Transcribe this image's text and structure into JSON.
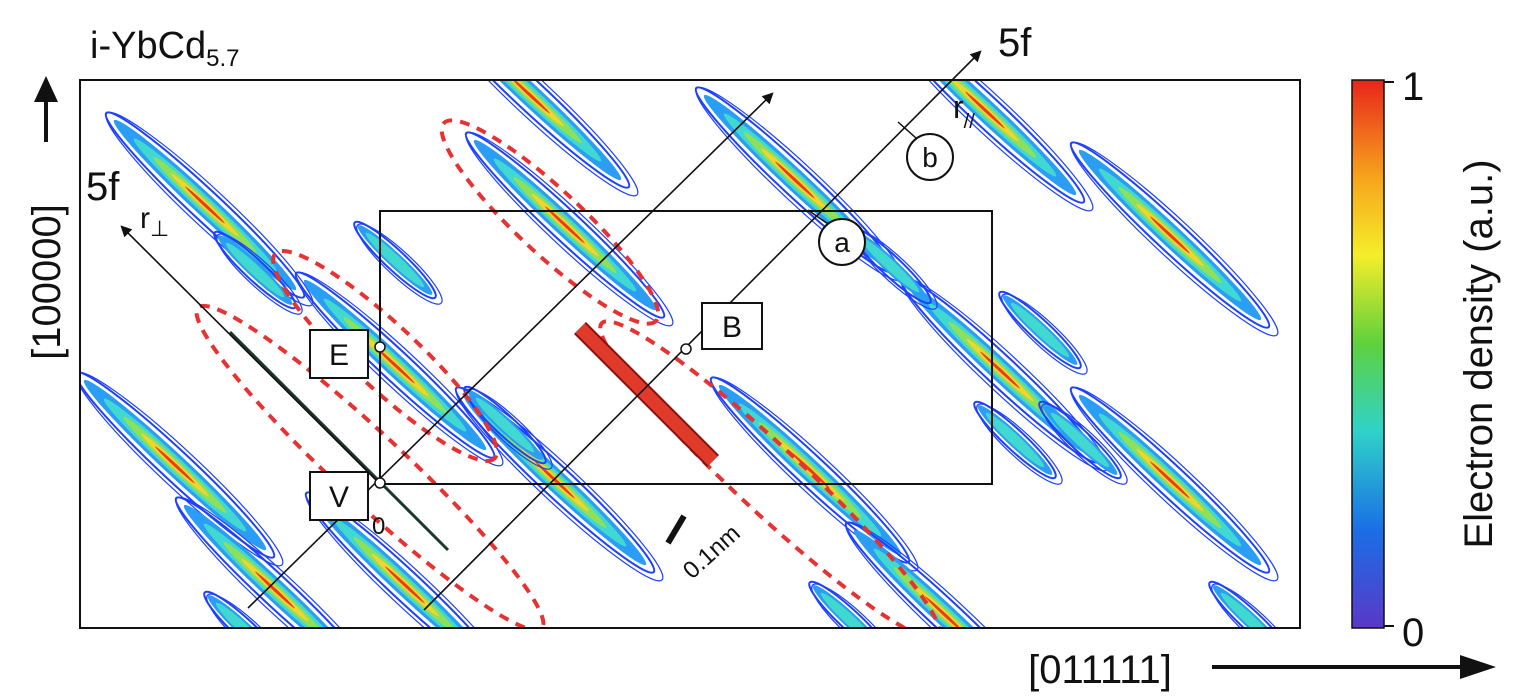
{
  "title": {
    "prefix": "i-YbCd",
    "subscript": "5.7"
  },
  "axes": {
    "vertical_direction": "[100000]",
    "horizontal_direction": "[011111]"
  },
  "arrow_labels": {
    "five_f_top": "5f",
    "five_f_left": "5f",
    "r_parallel": "r",
    "r_parallel_sub": "//",
    "r_perp": "r",
    "r_perp_sub": "⊥",
    "origin": "0"
  },
  "points": {
    "a": "a",
    "b": "b",
    "B": "B",
    "E": "E",
    "V": "V"
  },
  "scale_bar": "0.1nm",
  "colorbar": {
    "label": "Electron density (a.u.)",
    "max": "1",
    "min": "0",
    "colors": [
      "#e8251b",
      "#f7a51c",
      "#f5ee2a",
      "#5fd13c",
      "#2fd3c8",
      "#1a6fe6",
      "#5a38c9"
    ]
  },
  "contour_colors": [
    "#1e40ff",
    "#2a9df4",
    "#40d8d0",
    "#8ee05a",
    "#f2d42e",
    "#ee3a1c"
  ],
  "highlight_color": "#e83232"
}
